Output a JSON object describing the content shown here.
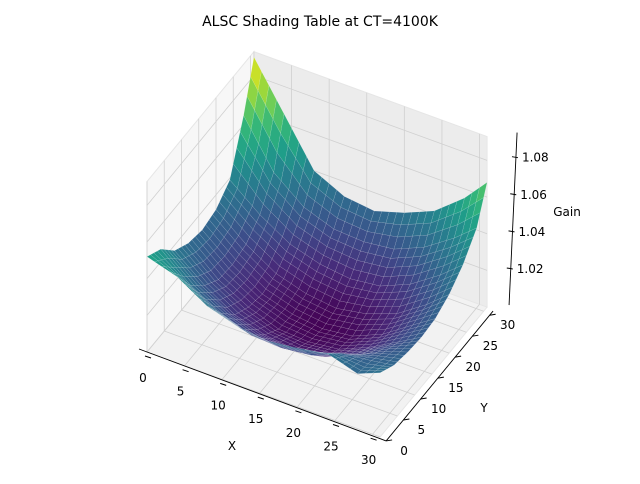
{
  "chart_data": {
    "type": "surface",
    "title": "ALSC Shading Table at CT=4100K",
    "xlabel": "X",
    "ylabel": "Y",
    "zlabel": "Gain",
    "colormap": "viridis",
    "grid": true,
    "view": {
      "elevation": 30,
      "azimuth": -60
    },
    "x_ticks": [
      "0",
      "5",
      "10",
      "15",
      "20",
      "25",
      "30"
    ],
    "y_ticks": [
      "0",
      "5",
      "10",
      "15",
      "20",
      "25",
      "30"
    ],
    "z_ticks": [
      "1.02",
      "1.04",
      "1.06",
      "1.08"
    ],
    "xlim": [
      0,
      31
    ],
    "ylim": [
      0,
      31
    ],
    "zlim": [
      1.0,
      1.093
    ],
    "grid_x": [
      0,
      4,
      8,
      12,
      16,
      20,
      24,
      28,
      31
    ],
    "grid_y": [
      0,
      4,
      8,
      12,
      16,
      20,
      24,
      28,
      31
    ],
    "z": [
      [
        1.052,
        1.047,
        1.037,
        1.032,
        1.03,
        1.032,
        1.039,
        1.065,
        1.09
      ],
      [
        1.047,
        1.033,
        1.024,
        1.018,
        1.017,
        1.019,
        1.026,
        1.04,
        1.065
      ],
      [
        1.037,
        1.024,
        1.014,
        1.009,
        1.007,
        1.009,
        1.016,
        1.027,
        1.04
      ],
      [
        1.032,
        1.018,
        1.009,
        1.003,
        1.002,
        1.004,
        1.011,
        1.021,
        1.032
      ],
      [
        1.03,
        1.017,
        1.007,
        1.002,
        1.0,
        1.002,
        1.009,
        1.02,
        1.03
      ],
      [
        1.032,
        1.019,
        1.009,
        1.004,
        1.002,
        1.005,
        1.011,
        1.022,
        1.035
      ],
      [
        1.035,
        1.026,
        1.016,
        1.011,
        1.009,
        1.011,
        1.018,
        1.029,
        1.042
      ],
      [
        1.03,
        1.028,
        1.024,
        1.02,
        1.02,
        1.022,
        1.029,
        1.04,
        1.055
      ],
      [
        1.035,
        1.03,
        1.028,
        1.027,
        1.028,
        1.032,
        1.039,
        1.05,
        1.068
      ]
    ]
  }
}
